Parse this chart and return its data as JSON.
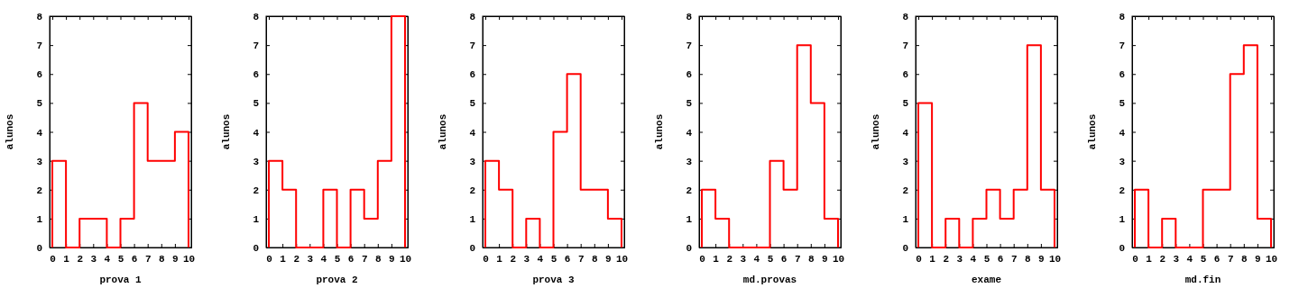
{
  "chart_data": [
    {
      "type": "step",
      "xlabel": "prova 1",
      "ylabel": "alunos",
      "x": [
        0,
        0,
        1,
        2,
        3,
        4,
        5,
        6,
        7,
        8,
        9,
        10
      ],
      "values": [
        0,
        3,
        0,
        1,
        1,
        0,
        1,
        5,
        3,
        3,
        4,
        0
      ],
      "color": "#ff0000",
      "xlim": [
        -0.2,
        10.2
      ],
      "xticks": [
        0,
        1,
        2,
        3,
        4,
        5,
        6,
        7,
        8,
        9,
        10
      ],
      "ylim": [
        0,
        8
      ],
      "yticks": [
        0,
        1,
        2,
        3,
        4,
        5,
        6,
        7,
        8
      ],
      "grid": false
    },
    {
      "type": "step",
      "xlabel": "prova 2",
      "ylabel": "alunos",
      "x": [
        0,
        0,
        1,
        2,
        3,
        4,
        5,
        6,
        7,
        8,
        9,
        10
      ],
      "values": [
        0,
        3,
        2,
        0,
        0,
        2,
        0,
        2,
        1,
        3,
        8,
        0
      ],
      "color": "#ff0000",
      "xlim": [
        -0.2,
        10.2
      ],
      "xticks": [
        0,
        1,
        2,
        3,
        4,
        5,
        6,
        7,
        8,
        9,
        10
      ],
      "ylim": [
        0,
        8
      ],
      "yticks": [
        0,
        1,
        2,
        3,
        4,
        5,
        6,
        7,
        8
      ],
      "grid": false
    },
    {
      "type": "step",
      "xlabel": "prova 3",
      "ylabel": "alunos",
      "x": [
        0,
        0,
        1,
        2,
        3,
        4,
        5,
        6,
        7,
        8,
        9,
        10
      ],
      "values": [
        0,
        3,
        2,
        0,
        1,
        0,
        4,
        6,
        2,
        2,
        1,
        0
      ],
      "color": "#ff0000",
      "xlim": [
        -0.2,
        10.2
      ],
      "xticks": [
        0,
        1,
        2,
        3,
        4,
        5,
        6,
        7,
        8,
        9,
        10
      ],
      "ylim": [
        0,
        8
      ],
      "yticks": [
        0,
        1,
        2,
        3,
        4,
        5,
        6,
        7,
        8
      ],
      "grid": false
    },
    {
      "type": "step",
      "xlabel": "md.provas",
      "ylabel": "alunos",
      "x": [
        0,
        0,
        1,
        2,
        3,
        4,
        5,
        6,
        7,
        8,
        9,
        10
      ],
      "values": [
        0,
        2,
        1,
        0,
        0,
        0,
        3,
        2,
        7,
        5,
        1,
        0
      ],
      "color": "#ff0000",
      "xlim": [
        -0.2,
        10.2
      ],
      "xticks": [
        0,
        1,
        2,
        3,
        4,
        5,
        6,
        7,
        8,
        9,
        10
      ],
      "ylim": [
        0,
        8
      ],
      "yticks": [
        0,
        1,
        2,
        3,
        4,
        5,
        6,
        7,
        8
      ],
      "grid": false
    },
    {
      "type": "step",
      "xlabel": "exame",
      "ylabel": "alunos",
      "x": [
        0,
        0,
        1,
        2,
        3,
        4,
        5,
        6,
        7,
        8,
        9,
        10
      ],
      "values": [
        0,
        5,
        0,
        1,
        0,
        1,
        2,
        1,
        2,
        7,
        2,
        0
      ],
      "color": "#ff0000",
      "xlim": [
        -0.2,
        10.2
      ],
      "xticks": [
        0,
        1,
        2,
        3,
        4,
        5,
        6,
        7,
        8,
        9,
        10
      ],
      "ylim": [
        0,
        8
      ],
      "yticks": [
        0,
        1,
        2,
        3,
        4,
        5,
        6,
        7,
        8
      ],
      "grid": false
    },
    {
      "type": "step",
      "xlabel": "md.fin",
      "ylabel": "alunos",
      "x": [
        0,
        0,
        1,
        2,
        3,
        4,
        5,
        6,
        7,
        8,
        9,
        10
      ],
      "values": [
        0,
        2,
        0,
        1,
        0,
        0,
        2,
        2,
        6,
        7,
        1,
        0
      ],
      "color": "#ff0000",
      "xlim": [
        -0.2,
        10.2
      ],
      "xticks": [
        0,
        1,
        2,
        3,
        4,
        5,
        6,
        7,
        8,
        9,
        10
      ],
      "ylim": [
        0,
        8
      ],
      "yticks": [
        0,
        1,
        2,
        3,
        4,
        5,
        6,
        7,
        8
      ],
      "grid": false
    }
  ]
}
